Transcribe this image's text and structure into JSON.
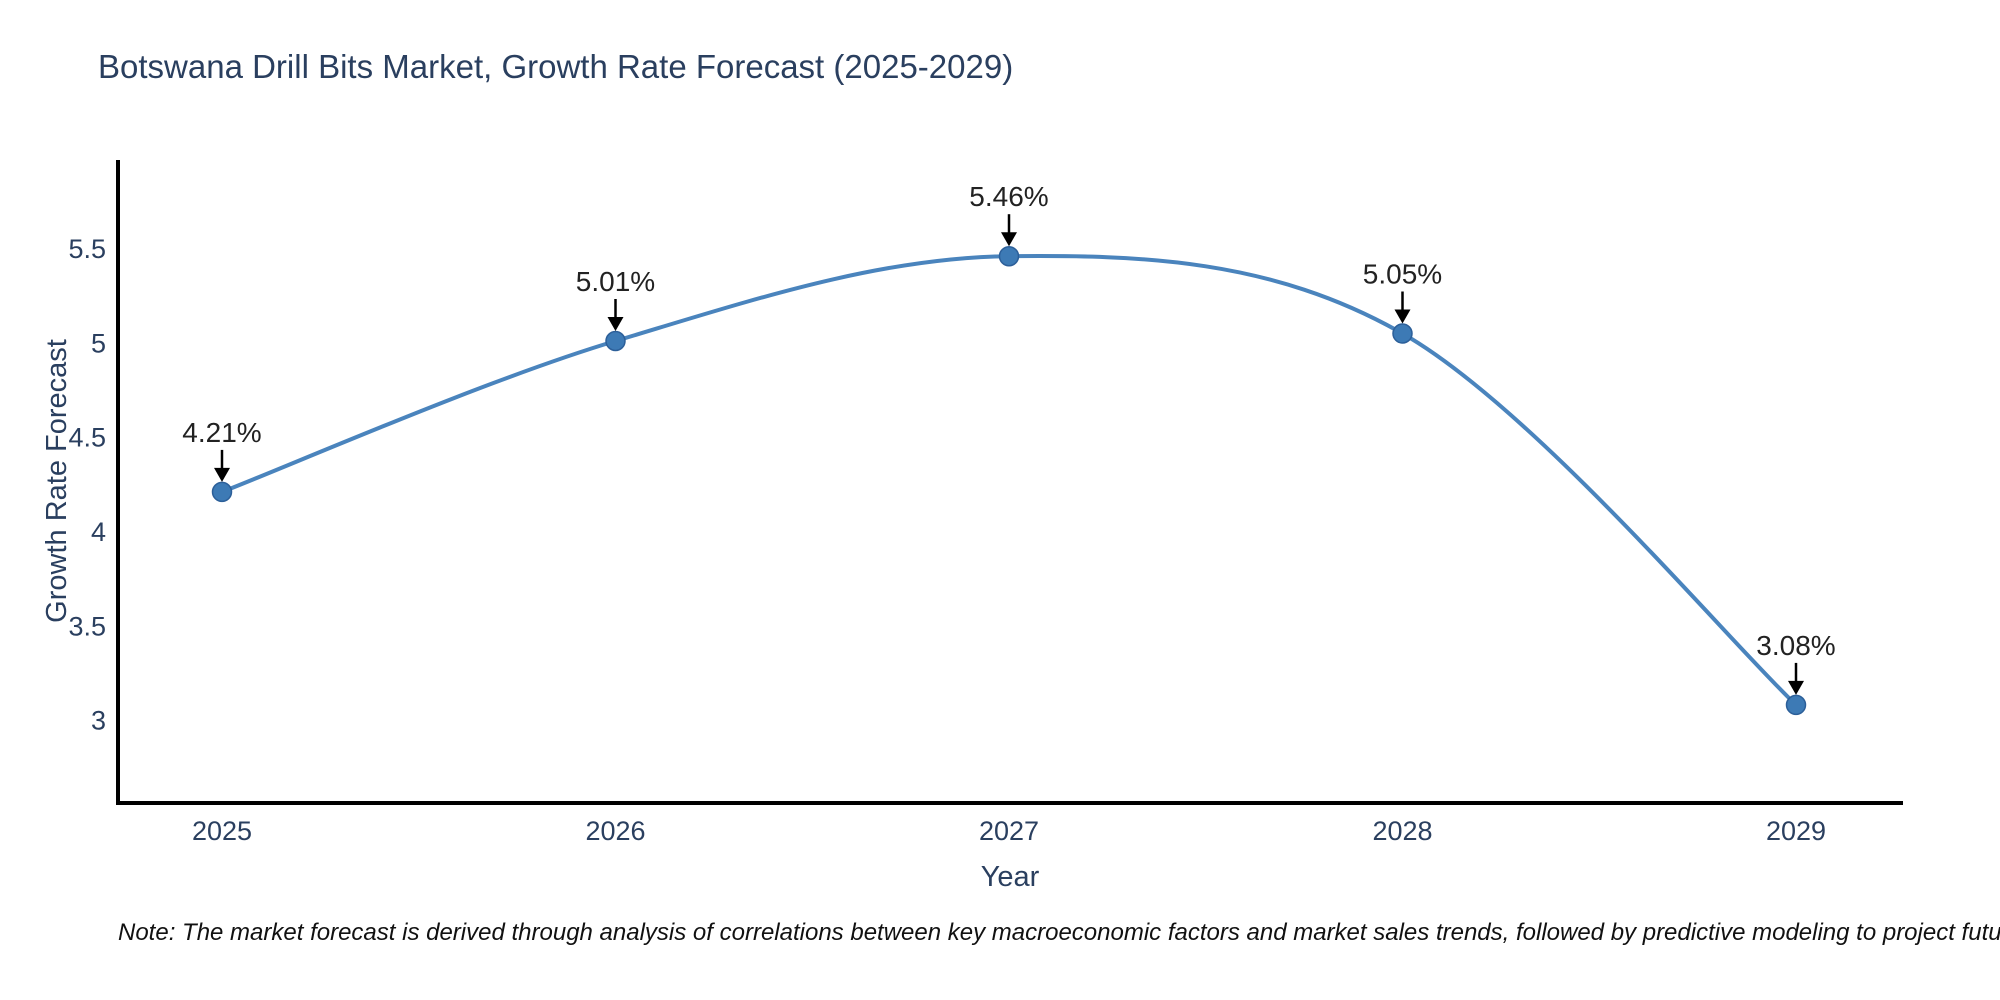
{
  "note": "Note: The market forecast is derived through analysis of correlations between key macroeconomic factors and market sales trends, followed by predictive modeling to project future sales",
  "chart_data": {
    "type": "line",
    "title": "Botswana Drill Bits Market, Growth Rate Forecast (2025-2029)",
    "xlabel": "Year",
    "ylabel": "Growth Rate Forecast",
    "categories": [
      "2025",
      "2026",
      "2027",
      "2028",
      "2029"
    ],
    "values": [
      4.21,
      5.01,
      5.46,
      5.05,
      3.08
    ],
    "point_labels": [
      "4.21%",
      "5.01%",
      "5.46%",
      "5.05%",
      "3.08%"
    ],
    "yticks": [
      "3",
      "3.5",
      "4",
      "4.5",
      "5",
      "5.5"
    ],
    "ytick_values": [
      3,
      3.5,
      4,
      4.5,
      5,
      5.5
    ],
    "ylim": [
      2.56,
      5.97
    ],
    "curve": "spline",
    "grid": false,
    "legend": false,
    "line_color": "#4a84bd",
    "marker_color": "#3d7ab5",
    "marker_edge_color": "#2c5f99",
    "annotation_arrow_color": "#000000",
    "axis_color": "#000000",
    "text_color": "#2a3f5f"
  }
}
